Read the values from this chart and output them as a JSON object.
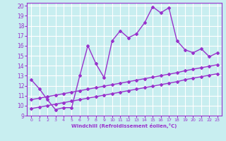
{
  "xlabel": "Windchill (Refroidissement éolien,°C)",
  "bg_color": "#c8eef0",
  "line_color": "#9932CC",
  "grid_color": "#ffffff",
  "xlim": [
    -0.5,
    23.5
  ],
  "ylim": [
    9,
    20.3
  ],
  "xticks": [
    0,
    1,
    2,
    3,
    4,
    5,
    6,
    7,
    8,
    9,
    10,
    11,
    12,
    13,
    14,
    15,
    16,
    17,
    18,
    19,
    20,
    21,
    22,
    23
  ],
  "yticks": [
    9,
    10,
    11,
    12,
    13,
    14,
    15,
    16,
    17,
    18,
    19,
    20
  ],
  "curve1_x": [
    0,
    1,
    2,
    3,
    4,
    5,
    6,
    7,
    8,
    9,
    10,
    11,
    12,
    13,
    14,
    15,
    16,
    17,
    18,
    19,
    20,
    21,
    22,
    23
  ],
  "curve1_y": [
    12.6,
    11.7,
    10.6,
    9.6,
    9.8,
    9.8,
    13.0,
    16.0,
    14.2,
    12.8,
    16.5,
    17.5,
    16.8,
    17.2,
    18.3,
    19.9,
    19.3,
    19.8,
    16.5,
    15.6,
    15.3,
    15.7,
    14.9,
    15.3
  ],
  "curve2_x": [
    0,
    1,
    2,
    3,
    4,
    5,
    6,
    7,
    8,
    9,
    10,
    11,
    12,
    13,
    14,
    15,
    16,
    17,
    18,
    19,
    20,
    21,
    22,
    23
  ],
  "curve2_y": [
    10.6,
    10.75,
    10.9,
    11.05,
    11.2,
    11.35,
    11.5,
    11.65,
    11.8,
    11.95,
    12.1,
    12.25,
    12.4,
    12.55,
    12.7,
    12.85,
    13.0,
    13.15,
    13.3,
    13.5,
    13.65,
    13.8,
    13.95,
    14.1
  ],
  "curve3_x": [
    0,
    1,
    2,
    3,
    4,
    5,
    6,
    7,
    8,
    9,
    10,
    11,
    12,
    13,
    14,
    15,
    16,
    17,
    18,
    19,
    20,
    21,
    22,
    23
  ],
  "curve3_y": [
    9.7,
    9.85,
    10.0,
    10.15,
    10.3,
    10.45,
    10.6,
    10.75,
    10.9,
    11.05,
    11.2,
    11.35,
    11.5,
    11.65,
    11.8,
    11.95,
    12.1,
    12.25,
    12.4,
    12.6,
    12.75,
    12.9,
    13.05,
    13.2
  ],
  "marker": "D",
  "marker_size": 2.0,
  "linewidth": 1.0
}
